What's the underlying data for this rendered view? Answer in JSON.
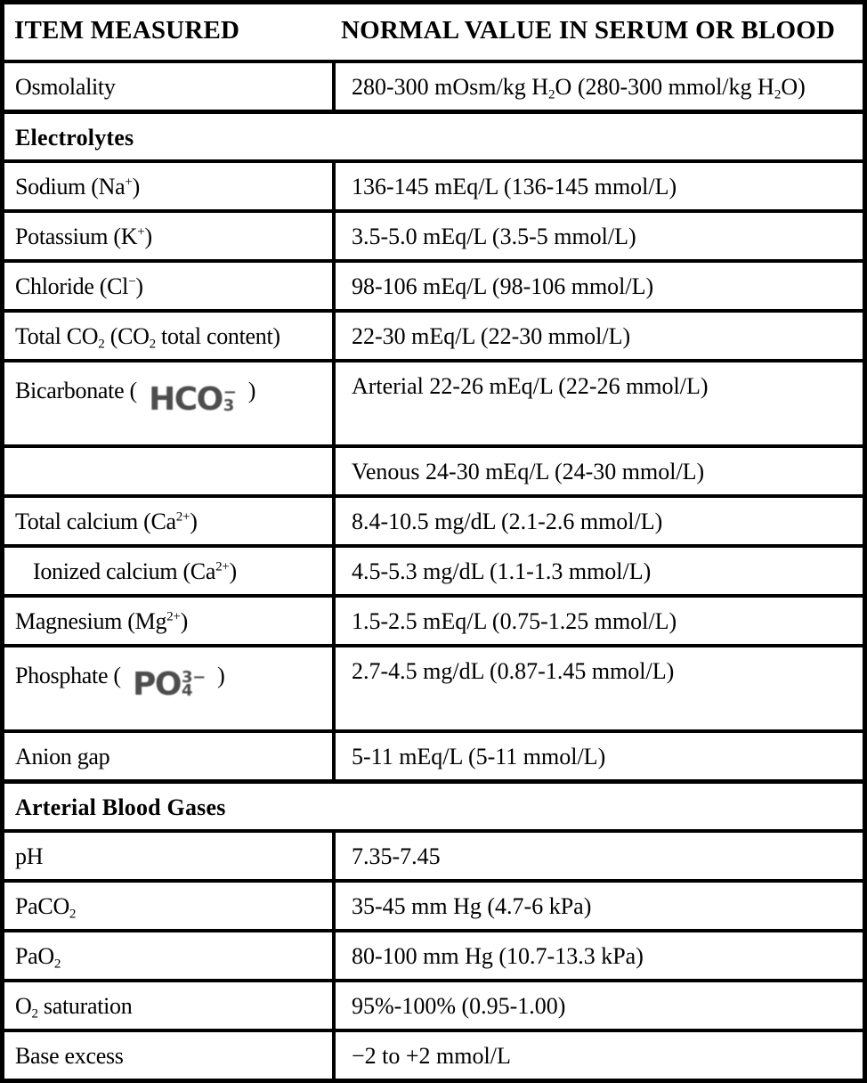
{
  "table": {
    "columns": [
      "ITEM MEASURED",
      "NORMAL VALUE IN SERUM OR BLOOD"
    ],
    "border_color": "#000000",
    "text_color": "#000000",
    "formula_color": "#4d4d4d",
    "formulas": {
      "hco3": {
        "main": "HCO",
        "sup": "−",
        "sub": "3"
      },
      "po4": {
        "main": "PO",
        "sup": "3−",
        "sub": "4"
      }
    },
    "rows": [
      {
        "kind": "data",
        "item": "Osmolality",
        "value": "280-300 mOsm/kg H~2~O (280-300 mmol/kg H~2~O)"
      },
      {
        "kind": "section",
        "label": "Electrolytes"
      },
      {
        "kind": "data",
        "item": "Sodium (Na^+^)",
        "value": "136-145 mEq/L (136-145 mmol/L)"
      },
      {
        "kind": "data",
        "item": "Potassium (K^+^)",
        "value": "3.5-5.0 mEq/L (3.5-5 mmol/L)"
      },
      {
        "kind": "data",
        "item": "Chloride (Cl^−^)",
        "value": "98-106 mEq/L (98-106 mmol/L)"
      },
      {
        "kind": "data",
        "item": "Total CO~2~ (CO~2~ total content)",
        "value": "22-30 mEq/L (22-30 mmol/L)"
      },
      {
        "kind": "data",
        "item": "Bicarbonate ( @hco3@ )",
        "value": "Arterial 22-26 mEq/L (22-26 mmol/L)",
        "tall": true
      },
      {
        "kind": "data",
        "item": "",
        "value": "Venous 24-30 mEq/L (24-30 mmol/L)"
      },
      {
        "kind": "data",
        "item": "Total calcium (Ca^2+^)",
        "value": "8.4-10.5 mg/dL (2.1-2.6 mmol/L)"
      },
      {
        "kind": "data",
        "item": "Ionized calcium (Ca^2+^)",
        "value": "4.5-5.3 mg/dL (1.1-1.3 mmol/L)",
        "indent": true
      },
      {
        "kind": "data",
        "item": "Magnesium (Mg^2+^)",
        "value": "1.5-2.5 mEq/L (0.75-1.25 mmol/L)"
      },
      {
        "kind": "data",
        "item": "Phosphate ( @po4@ )",
        "value": "2.7-4.5 mg/dL (0.87-1.45 mmol/L)",
        "tall": true
      },
      {
        "kind": "data",
        "item": "Anion gap",
        "value": "5-11 mEq/L (5-11 mmol/L)"
      },
      {
        "kind": "section",
        "label": "Arterial Blood Gases"
      },
      {
        "kind": "data",
        "item": "pH",
        "value": "7.35-7.45"
      },
      {
        "kind": "data",
        "item": "PaCO~2~",
        "value": "35-45 mm Hg (4.7-6 kPa)"
      },
      {
        "kind": "data",
        "item": "PaO~2~",
        "value": "80-100 mm Hg (10.7-13.3 kPa)"
      },
      {
        "kind": "data",
        "item": "O~2~ saturation",
        "value": "95%-100% (0.95-1.00)"
      },
      {
        "kind": "data",
        "item": "Base excess",
        "value": "−2 to +2 mmol/L"
      }
    ]
  }
}
